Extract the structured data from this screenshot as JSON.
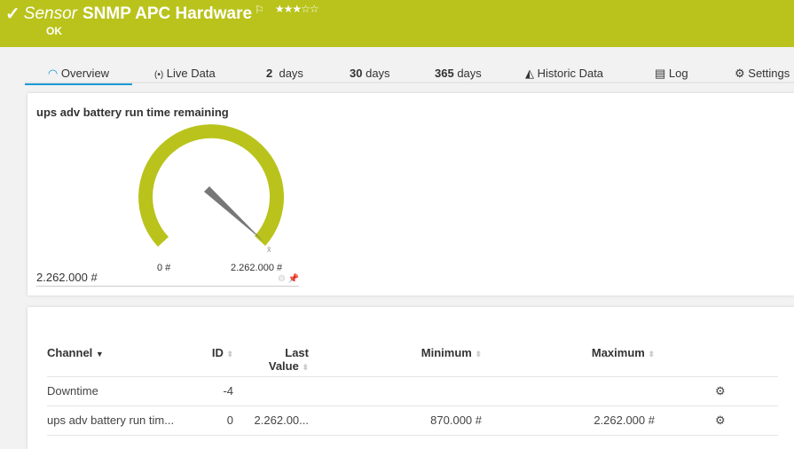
{
  "header": {
    "prefix": "Sensor",
    "title": "SNMP APC Hardware",
    "status": "OK",
    "priority_stars": 3,
    "max_stars": 5,
    "color": "#b9c31b"
  },
  "tabs": [
    {
      "label": "Overview",
      "icon": "gauge-icon",
      "active": true
    },
    {
      "label": "Live Data",
      "icon": "broadcast-icon"
    },
    {
      "num": "2",
      "label": "days"
    },
    {
      "num": "30",
      "label": "days"
    },
    {
      "num": "365",
      "label": "days"
    },
    {
      "label": "Historic Data",
      "icon": "area-chart-icon"
    },
    {
      "label": "Log",
      "icon": "list-icon"
    },
    {
      "label": "Settings",
      "icon": "gear-icon"
    }
  ],
  "gauge": {
    "title": "ups adv battery run time remaining",
    "min_label": "0 #",
    "max_label": "2.262.000 #",
    "value_label": "2.262.000 #",
    "value_fraction": 1.0,
    "mark": "x̄",
    "color": "#b9c31b"
  },
  "table": {
    "headers": {
      "channel": "Channel",
      "id": "ID",
      "last": "Last",
      "last2": "Value",
      "min": "Minimum",
      "max": "Maximum"
    },
    "rows": [
      {
        "channel": "Downtime",
        "id": "-4",
        "last": "",
        "min": "",
        "max": ""
      },
      {
        "channel": "ups adv battery run tim...",
        "id": "0",
        "last": "2.262.00...",
        "min": "870.000 #",
        "max": "2.262.000 #"
      }
    ]
  }
}
